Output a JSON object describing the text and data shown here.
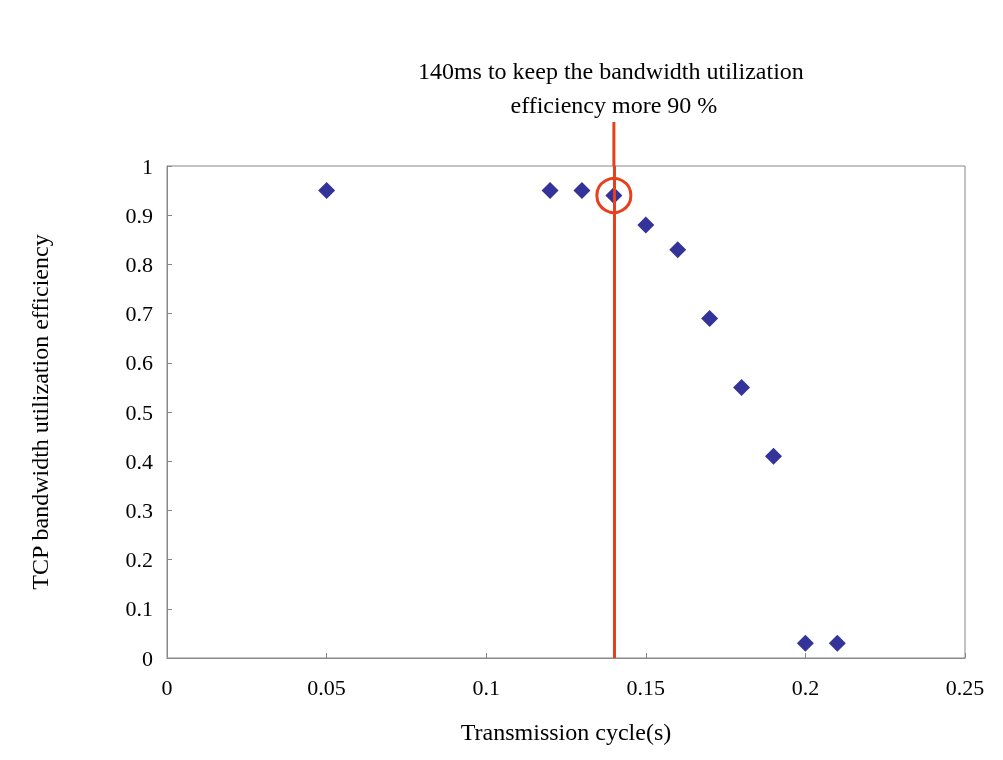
{
  "chart_data": {
    "type": "scatter",
    "xlabel": "Transmission cycle(s)",
    "ylabel": "TCP bandwidth utilization efficiency",
    "x": [
      0.05,
      0.12,
      0.13,
      0.14,
      0.15,
      0.16,
      0.17,
      0.18,
      0.19,
      0.2,
      0.21
    ],
    "series": [
      {
        "color": "#000080",
        "values": [
          0.95,
          0.95,
          0.95,
          0.94,
          0.88,
          0.83,
          0.69,
          0.55,
          0.41,
          0.03,
          0.03
        ]
      }
    ],
    "xlim": [
      0,
      0.25
    ],
    "xticks": [
      0,
      0.05,
      0.1,
      0.15,
      0.2,
      0.25
    ],
    "ylim": [
      0,
      1
    ],
    "yticks": [
      0,
      0.1,
      0.2,
      0.3,
      0.4,
      0.5,
      0.6,
      0.7,
      0.8,
      0.9,
      1
    ],
    "ref_lines": [
      {
        "axis": "x",
        "value": 0.14,
        "label": "140ms to keep the bandwidth utilization efficiency more 90 %",
        "color": "#e8401c"
      }
    ],
    "marker": "diamond",
    "grid": false
  }
}
